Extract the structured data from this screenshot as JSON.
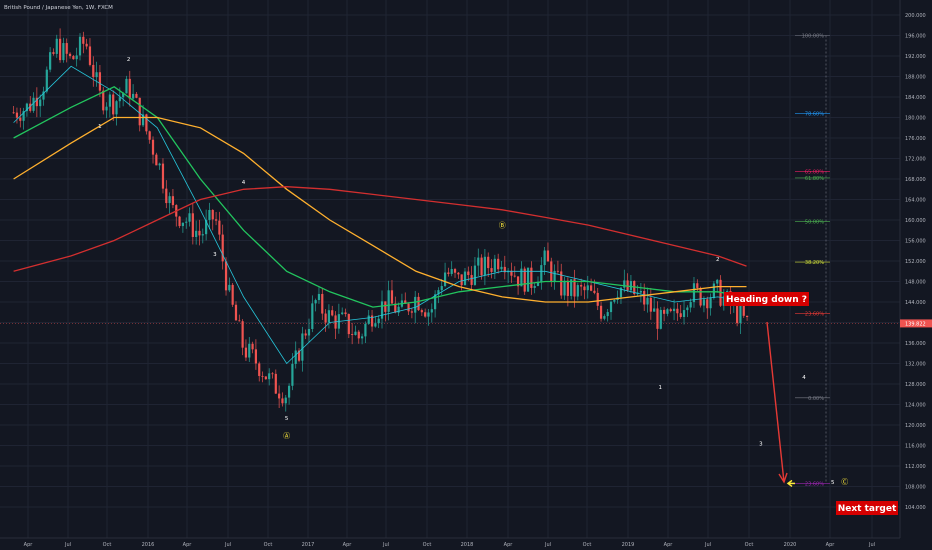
{
  "chart_data": {
    "type": "candlestick",
    "title": "British Pound / Japanese Yen, 1W, FXCM",
    "x_tick_labels": [
      "Apr",
      "Jul",
      "Oct",
      "2016",
      "Apr",
      "Jul",
      "Oct",
      "2017",
      "Apr",
      "Jul",
      "Oct",
      "2018",
      "Apr",
      "Jul",
      "Oct",
      "2019",
      "Apr",
      "Jul",
      "Oct",
      "2020",
      "Apr",
      "Jul"
    ],
    "y_tick_labels": [
      "200.000",
      "196.000",
      "192.000",
      "188.000",
      "184.000",
      "180.000",
      "176.000",
      "172.000",
      "168.000",
      "164.000",
      "160.000",
      "156.000",
      "152.000",
      "148.000",
      "144.000",
      "140.000",
      "136.000",
      "132.000",
      "128.000",
      "124.000",
      "120.000",
      "116.000",
      "112.000",
      "108.000",
      "104.000"
    ],
    "ylim": [
      102,
      202
    ],
    "last_price": "139.822",
    "price_series": [
      [
        "2015-03",
        181
      ],
      [
        "2015-04",
        182
      ],
      [
        "2015-05",
        186
      ],
      [
        "2015-06",
        194
      ],
      [
        "2015-07",
        191
      ],
      [
        "2015-08",
        195
      ],
      [
        "2015-09",
        184
      ],
      [
        "2015-10",
        183
      ],
      [
        "2015-11",
        186
      ],
      [
        "2015-12",
        179
      ],
      [
        "2016-01",
        172
      ],
      [
        "2016-02",
        162
      ],
      [
        "2016-03",
        160
      ],
      [
        "2016-04",
        157
      ],
      [
        "2016-05",
        161
      ],
      [
        "2016-06",
        145
      ],
      [
        "2016-07",
        135
      ],
      [
        "2016-08",
        132
      ],
      [
        "2016-09",
        128
      ],
      [
        "2016-10",
        126
      ],
      [
        "2016-11",
        136
      ],
      [
        "2016-12",
        144
      ],
      [
        "2017-01",
        141
      ],
      [
        "2017-02",
        140
      ],
      [
        "2017-03",
        137
      ],
      [
        "2017-04",
        142
      ],
      [
        "2017-05",
        144
      ],
      [
        "2017-06",
        142
      ],
      [
        "2017-07",
        145
      ],
      [
        "2017-08",
        142
      ],
      [
        "2017-09",
        150
      ],
      [
        "2017-10",
        148
      ],
      [
        "2017-11",
        150
      ],
      [
        "2017-12",
        151
      ],
      [
        "2018-01",
        153
      ],
      [
        "2018-02",
        149
      ],
      [
        "2018-03",
        148
      ],
      [
        "2018-04",
        152
      ],
      [
        "2018-05",
        147
      ],
      [
        "2018-06",
        146
      ],
      [
        "2018-07",
        146
      ],
      [
        "2018-08",
        142
      ],
      [
        "2018-09",
        147
      ],
      [
        "2018-10",
        146
      ],
      [
        "2018-11",
        144
      ],
      [
        "2018-12",
        140
      ],
      [
        "2019-01",
        141
      ],
      [
        "2019-02",
        146
      ],
      [
        "2019-03",
        145
      ],
      [
        "2019-04",
        146
      ],
      [
        "2019-05",
        143
      ],
      [
        "2019-06",
        139.8
      ]
    ],
    "moving_averages": [
      {
        "color": "#26c6da",
        "points": [
          [
            "2015-03",
            179
          ],
          [
            "2015-07",
            190
          ],
          [
            "2015-10",
            185
          ],
          [
            "2016-01",
            178
          ],
          [
            "2016-04",
            162
          ],
          [
            "2016-07",
            145
          ],
          [
            "2016-10",
            132
          ],
          [
            "2017-01",
            140
          ],
          [
            "2017-04",
            141
          ],
          [
            "2017-07",
            143
          ],
          [
            "2017-10",
            148
          ],
          [
            "2018-01",
            150
          ],
          [
            "2018-04",
            150
          ],
          [
            "2018-07",
            148
          ],
          [
            "2018-10",
            146
          ],
          [
            "2019-01",
            144
          ],
          [
            "2019-04",
            145
          ],
          [
            "2019-06",
            144
          ]
        ]
      },
      {
        "color": "#22c55e",
        "points": [
          [
            "2015-03",
            176
          ],
          [
            "2015-07",
            182
          ],
          [
            "2015-10",
            186
          ],
          [
            "2016-01",
            180
          ],
          [
            "2016-04",
            168
          ],
          [
            "2016-07",
            158
          ],
          [
            "2016-10",
            150
          ],
          [
            "2017-01",
            146
          ],
          [
            "2017-04",
            143
          ],
          [
            "2017-07",
            144
          ],
          [
            "2017-10",
            146
          ],
          [
            "2018-01",
            147
          ],
          [
            "2018-04",
            148
          ],
          [
            "2018-07",
            148
          ],
          [
            "2018-10",
            147
          ],
          [
            "2019-01",
            146
          ],
          [
            "2019-04",
            146
          ],
          [
            "2019-06",
            145
          ]
        ]
      },
      {
        "color": "#ffb02e",
        "points": [
          [
            "2015-03",
            168
          ],
          [
            "2015-07",
            175
          ],
          [
            "2015-10",
            180
          ],
          [
            "2016-01",
            180
          ],
          [
            "2016-04",
            178
          ],
          [
            "2016-07",
            173
          ],
          [
            "2016-10",
            166
          ],
          [
            "2017-01",
            160
          ],
          [
            "2017-04",
            155
          ],
          [
            "2017-07",
            150
          ],
          [
            "2017-10",
            147
          ],
          [
            "2018-01",
            145
          ],
          [
            "2018-04",
            144
          ],
          [
            "2018-07",
            144
          ],
          [
            "2018-10",
            145
          ],
          [
            "2019-01",
            146
          ],
          [
            "2019-04",
            147
          ],
          [
            "2019-06",
            147
          ]
        ]
      },
      {
        "color": "#d32f2f",
        "points": [
          [
            "2015-03",
            150
          ],
          [
            "2015-07",
            153
          ],
          [
            "2015-10",
            156
          ],
          [
            "2016-01",
            160
          ],
          [
            "2016-04",
            164
          ],
          [
            "2016-07",
            166
          ],
          [
            "2016-10",
            166.5
          ],
          [
            "2017-01",
            166
          ],
          [
            "2017-04",
            165
          ],
          [
            "2017-07",
            164
          ],
          [
            "2017-10",
            163
          ],
          [
            "2018-01",
            162
          ],
          [
            "2018-04",
            160.5
          ],
          [
            "2018-07",
            159
          ],
          [
            "2018-10",
            157
          ],
          [
            "2019-01",
            155
          ],
          [
            "2019-04",
            153
          ],
          [
            "2019-06",
            151
          ]
        ]
      }
    ],
    "wave_labels": [
      {
        "text": "1",
        "date": "2015-09",
        "price": 178
      },
      {
        "text": "2",
        "date": "2015-11",
        "price": 191
      },
      {
        "text": "3",
        "date": "2016-05",
        "price": 153
      },
      {
        "text": "4",
        "date": "2016-07",
        "price": 167
      },
      {
        "text": "5",
        "date": "2016-10",
        "price": 121
      },
      {
        "text": "Ⓐ",
        "date": "2016-10",
        "price": 117.5
      },
      {
        "text": "Ⓑ",
        "date": "2018-01",
        "price": 158.5
      },
      {
        "text": "1",
        "date": "2018-12",
        "price": 127
      },
      {
        "text": "2",
        "date": "2019-04",
        "price": 152
      },
      {
        "text": "3",
        "date": "2019-07",
        "price": 116
      },
      {
        "text": "4",
        "date": "2019-10",
        "price": 129
      },
      {
        "text": "5",
        "date": "2019-12",
        "price": 108.5
      },
      {
        "text": "Ⓒ",
        "date": "2019-12",
        "price": 108.5
      }
    ],
    "fib_levels": [
      {
        "label": "100.00%",
        "price": 196,
        "color": "#787b86"
      },
      {
        "label": "78.60%",
        "price": 180.8,
        "color": "#2196f3"
      },
      {
        "label": "65.00%",
        "price": 169.5,
        "color": "#e91e63"
      },
      {
        "label": "61.80%",
        "price": 168.2,
        "color": "#4caf50"
      },
      {
        "label": "50.00%",
        "price": 159.7,
        "color": "#4caf50"
      },
      {
        "label": "38.20%",
        "price": 151.8,
        "color": "#cddc39"
      },
      {
        "label": "23.60%",
        "price": 141.8,
        "color": "#e53935"
      },
      {
        "label": "0.00%",
        "price": 125.3,
        "color": "#787b86"
      },
      {
        "label": "23.60%",
        "price": 108.6,
        "color": "#9c27b0"
      }
    ],
    "annotations": [
      {
        "text": "Heading down ?",
        "bg": "#d50000"
      },
      {
        "text": "Next target",
        "bg": "#d50000"
      }
    ],
    "arrow_color": "#e53935",
    "pointer_color": "#ffeb3b",
    "up_color": "#26a69a",
    "down_color": "#ef5350"
  }
}
